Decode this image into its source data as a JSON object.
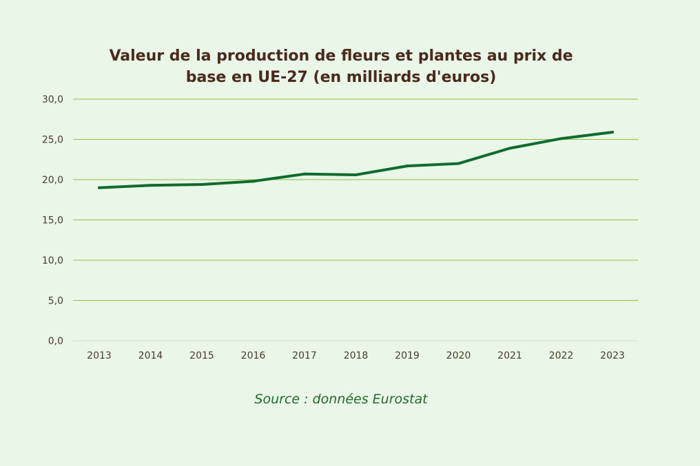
{
  "chart_data": {
    "type": "line",
    "title_lines": [
      "Valeur de la production de fleurs et plantes au prix de",
      "base en UE-27 (en milliards d'euros)"
    ],
    "categories": [
      "2013",
      "2014",
      "2015",
      "2016",
      "2017",
      "2018",
      "2019",
      "2020",
      "2021",
      "2022",
      "2023"
    ],
    "series": [
      {
        "values": [
          19.0,
          19.3,
          19.4,
          19.8,
          20.7,
          20.6,
          21.7,
          22.0,
          23.9,
          25.1,
          25.9
        ]
      }
    ],
    "ylim": [
      0,
      30
    ],
    "yticks": [
      "0,0",
      "5,0",
      "10,0",
      "15,0",
      "20,0",
      "25,0",
      "30,0"
    ],
    "ytick_values": [
      0,
      5,
      10,
      15,
      20,
      25,
      30
    ],
    "grid": true,
    "colors": {
      "line": "#0f6b2e",
      "grid": "#8fbf3a",
      "axis": "#c8e8d0",
      "tick_text": "#4a3a2c"
    }
  },
  "source": "Source : données Eurostat"
}
